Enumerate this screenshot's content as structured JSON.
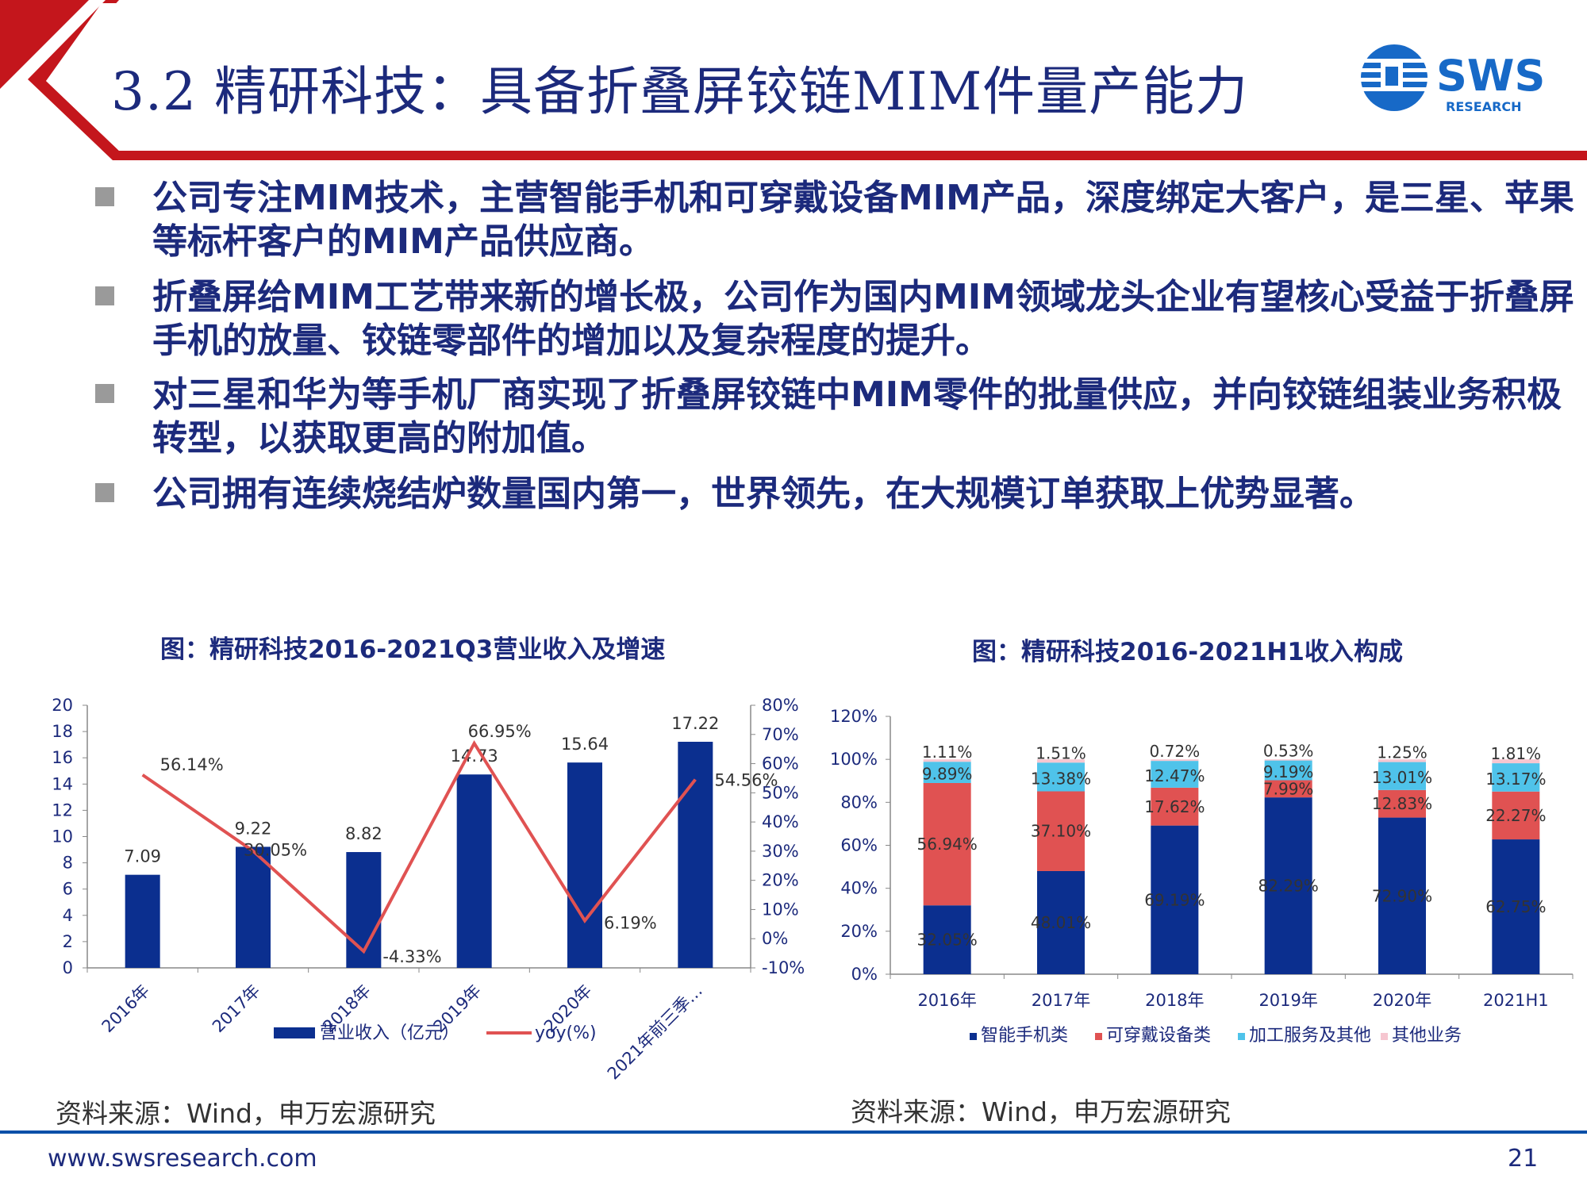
{
  "slide": {
    "title": "3.2 精研科技：具备折叠屏铰链MIM件量产能力",
    "logo": {
      "text": "SWS",
      "subtext": "RESEARCH"
    },
    "bullets": [
      "公司专注MIM技术，主营智能手机和可穿戴设备MIM产品，深度绑定大客户，是三星、苹果等标杆客户的MIM产品供应商。",
      "折叠屏给MIM工艺带来新的增长极，公司作为国内MIM领域龙头企业有望核心受益于折叠屏手机的放量、铰链零部件的增加以及复杂程度的提升。",
      "对三星和华为等手机厂商实现了折叠屏铰链中MIM零件的批量供应，并向铰链组装业务积极转型，以获取更高的附加值。",
      "公司拥有连续烧结炉数量国内第一，世界领先，在大规模订单获取上优势显著。"
    ],
    "footer": {
      "url": "www.swsresearch.com",
      "page": "21"
    },
    "colors": {
      "navy": "#1c2a7c",
      "red": "#c4161c",
      "bar_blue": "#0b2f8f",
      "line_red": "#e05252",
      "stack_red": "#e05252",
      "stack_cyan": "#4fc3ea",
      "stack_pink": "#f6c6d0"
    }
  },
  "chart_left": {
    "caption": "图：精研科技2016-2021Q3营业收入及增速",
    "source": "资料来源：Wind，申万宏源研究"
  },
  "chart_right": {
    "caption": "图：精研科技2016-2021H1收入构成",
    "source": "资料来源：Wind，申万宏源研究"
  },
  "chart_data": [
    {
      "type": "bar",
      "categories": [
        "2016年",
        "2017年",
        "2018年",
        "2019年",
        "2020年",
        "2021年前三季…"
      ],
      "series": [
        {
          "name": "营业收入（亿元）",
          "type": "bar",
          "axis": "left",
          "values": [
            7.09,
            9.22,
            8.82,
            14.73,
            15.64,
            17.22
          ],
          "labels": [
            "7.09",
            "9.22",
            "8.82",
            "14.73",
            "15.64",
            "17.22"
          ]
        },
        {
          "name": "yoy(%)",
          "type": "line",
          "axis": "right",
          "values": [
            56.14,
            30.05,
            -4.33,
            66.95,
            6.19,
            54.56
          ],
          "labels": [
            "56.14%",
            "30.05%",
            "-4.33%",
            "66.95%",
            "6.19%",
            "54.56%"
          ]
        }
      ],
      "ylim": [
        0,
        20
      ],
      "yticks": [
        "0",
        "2",
        "4",
        "6",
        "8",
        "10",
        "12",
        "14",
        "16",
        "18",
        "20"
      ],
      "y2lim": [
        -10,
        80
      ],
      "y2ticks": [
        "-10%",
        "0%",
        "10%",
        "20%",
        "30%",
        "40%",
        "50%",
        "60%",
        "70%",
        "80%"
      ],
      "legend_position": "bottom",
      "grid": false
    },
    {
      "type": "stacked-bar",
      "categories": [
        "2016年",
        "2017年",
        "2018年",
        "2019年",
        "2020年",
        "2021H1"
      ],
      "series": [
        {
          "name": "智能手机类",
          "values": [
            32.05,
            48.01,
            69.19,
            82.29,
            72.9,
            62.75
          ],
          "labels": [
            "32.05%",
            "48.01%",
            "69.19%",
            "82.29%",
            "72.90%",
            "62.75%"
          ]
        },
        {
          "name": "可穿戴设备类",
          "values": [
            56.94,
            37.1,
            17.62,
            7.99,
            12.83,
            22.27
          ],
          "labels": [
            "56.94%",
            "37.10%",
            "17.62%",
            "7.99%",
            "12.83%",
            "22.27%"
          ]
        },
        {
          "name": "加工服务及其他",
          "values": [
            9.89,
            13.38,
            12.47,
            9.19,
            13.01,
            13.17
          ],
          "labels": [
            "9.89%",
            "13.38%",
            "12.47%",
            "9.19%",
            "13.01%",
            "13.17%"
          ]
        },
        {
          "name": "其他业务",
          "values": [
            1.11,
            1.51,
            0.72,
            0.53,
            1.25,
            1.81
          ],
          "labels": [
            "1.11%",
            "1.51%",
            "0.72%",
            "0.53%",
            "1.25%",
            "1.81%"
          ]
        }
      ],
      "ylim": [
        0,
        120
      ],
      "yticks": [
        "0%",
        "20%",
        "40%",
        "60%",
        "80%",
        "100%",
        "120%"
      ],
      "legend_position": "bottom",
      "grid": false
    }
  ]
}
